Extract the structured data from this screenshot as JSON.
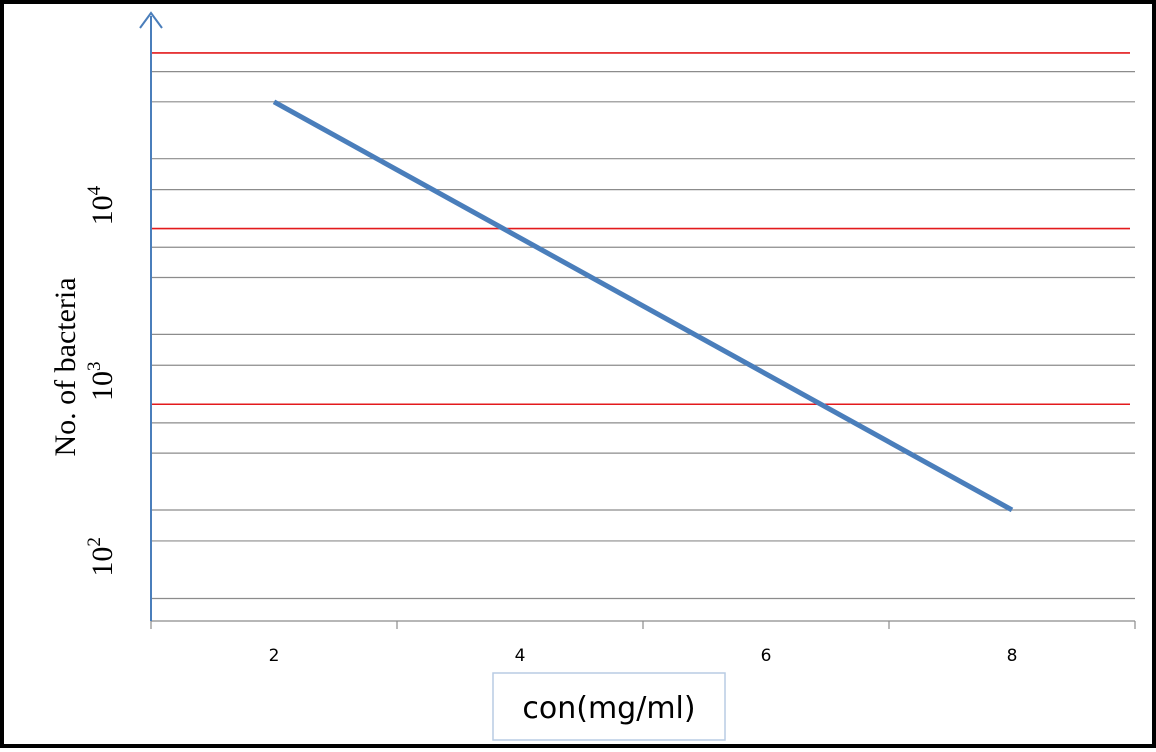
{
  "chart_data": {
    "type": "line",
    "xlabel": "con(mg/ml)",
    "ylabel": "No. of bacteria",
    "x_ticks": [
      "2",
      "4",
      "6",
      "8"
    ],
    "xlim": [
      1,
      9
    ],
    "y_scale": "log",
    "y_ticks": [
      {
        "base": "10",
        "exp": "2",
        "value": 100
      },
      {
        "base": "10",
        "exp": "3",
        "value": 1000
      },
      {
        "base": "10",
        "exp": "4",
        "value": 10000
      }
    ],
    "ylim": [
      35,
      100000
    ],
    "gridlines": [
      47,
      100,
      150,
      316,
      470,
      1000,
      1500,
      3162,
      4700,
      10000,
      15000,
      31623,
      47000
    ],
    "reference_lines": [
      {
        "y": 600,
        "color": "#e31a1c"
      },
      {
        "y": 6000,
        "color": "#e31a1c"
      },
      {
        "y": 60000,
        "color": "#e31a1c"
      }
    ],
    "series": [
      {
        "color": "#4a7ebb",
        "x": [
          2,
          8
        ],
        "y": [
          31623,
          150
        ]
      }
    ],
    "grid": true,
    "legend": "none"
  }
}
